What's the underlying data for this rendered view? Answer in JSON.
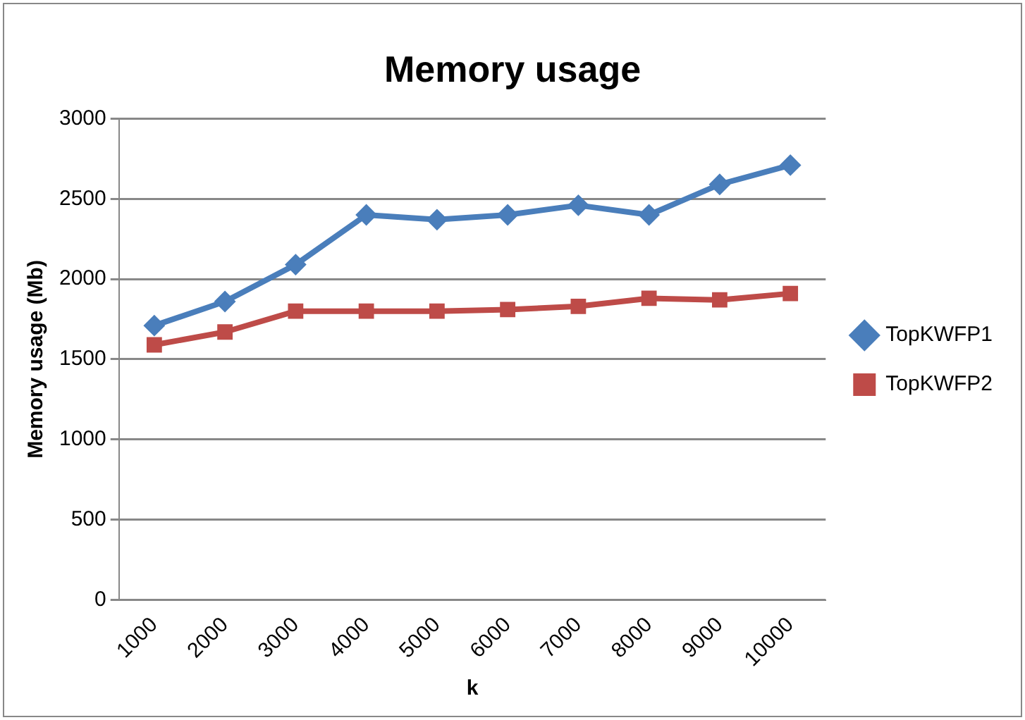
{
  "chart_data": {
    "type": "line",
    "title": "Memory usage",
    "xlabel": "k",
    "ylabel": "Memory usage (Mb)",
    "categories": [
      "1000",
      "2000",
      "3000",
      "4000",
      "5000",
      "6000",
      "7000",
      "8000",
      "9000",
      "10000"
    ],
    "series": [
      {
        "name": "TopKWFP1",
        "color": "#4a7ebb",
        "marker": "diamond",
        "values": [
          1710,
          1860,
          2090,
          2400,
          2370,
          2400,
          2460,
          2400,
          2590,
          2710
        ]
      },
      {
        "name": "TopKWFP2",
        "color": "#be4b48",
        "marker": "square",
        "values": [
          1590,
          1670,
          1800,
          1800,
          1800,
          1810,
          1830,
          1880,
          1870,
          1910
        ]
      }
    ],
    "ylim": [
      0,
      3000
    ],
    "yticks": [
      0,
      500,
      1000,
      1500,
      2000,
      2500,
      3000
    ],
    "grid": "y",
    "legend": "right"
  }
}
